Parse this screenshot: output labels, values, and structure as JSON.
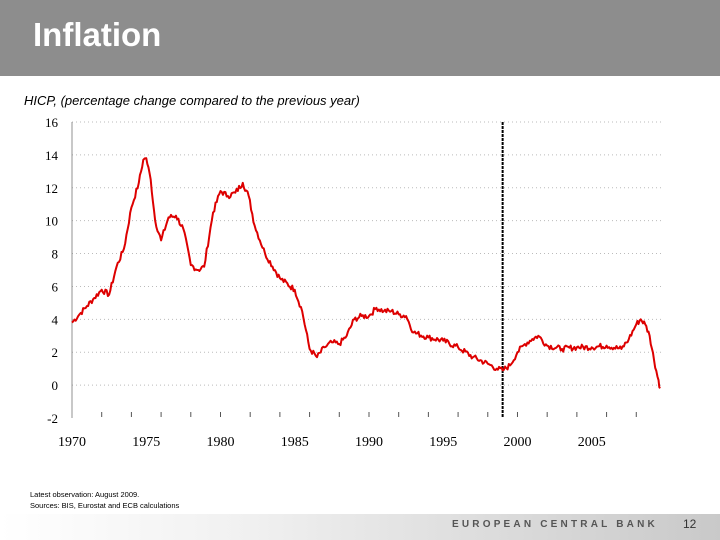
{
  "slide": {
    "title": "Inflation",
    "subtitle": "HICP, (percentage change compared to the previous year)",
    "note_latest": "Latest observation: August 2009.",
    "note_sources": "Sources: BIS, Eurostat and ECB calculations",
    "bank_name": "EUROPEAN CENTRAL BANK",
    "page_number": "12"
  },
  "colors": {
    "title_bar": "#8d8d8d",
    "series_line": "#dd0000",
    "grid": "#bbbbbb",
    "marker_line": "#000000"
  },
  "chart_data": {
    "type": "line",
    "title": "HICP, (percentage change compared to the previous year)",
    "xlabel": "",
    "ylabel": "",
    "xlim": [
      1970,
      2009.8
    ],
    "ylim": [
      -2,
      16
    ],
    "x_ticks": [
      1970,
      1975,
      1980,
      1985,
      1990,
      1995,
      2000,
      2005
    ],
    "x_tick_labels": [
      "1970",
      "1975",
      "1980",
      "1985",
      "1990",
      "1995",
      "2000",
      "2005"
    ],
    "y_ticks": [
      -2,
      0,
      2,
      4,
      6,
      8,
      10,
      12,
      14,
      16
    ],
    "y_tick_labels": [
      "-2",
      "0",
      "2",
      "4",
      "6",
      "8",
      "10",
      "12",
      "14",
      "16"
    ],
    "grid": true,
    "vertical_marker_x": 1999.0,
    "series": [
      {
        "name": "HICP",
        "x": [
          1970.0,
          1970.5,
          1971.0,
          1971.5,
          1972.0,
          1972.5,
          1973.0,
          1973.5,
          1974.0,
          1974.5,
          1974.8,
          1975.0,
          1975.3,
          1975.6,
          1976.0,
          1976.5,
          1977.0,
          1977.5,
          1978.0,
          1978.5,
          1978.9,
          1979.5,
          1980.0,
          1980.5,
          1981.0,
          1981.5,
          1981.9,
          1982.3,
          1983.0,
          1984.0,
          1985.0,
          1985.5,
          1986.0,
          1986.5,
          1987.0,
          1987.5,
          1988.0,
          1988.5,
          1989.0,
          1989.5,
          1990.0,
          1990.5,
          1991.0,
          1991.5,
          1992.0,
          1992.5,
          1993.0,
          1994.0,
          1995.0,
          1996.0,
          1997.0,
          1998.0,
          1998.6,
          1999.0,
          1999.5,
          2000.0,
          2000.5,
          2001.0,
          2001.4,
          2002.0,
          2003.0,
          2004.0,
          2005.0,
          2006.0,
          2007.0,
          2007.5,
          2008.0,
          2008.3,
          2008.6,
          2008.9,
          2009.2,
          2009.5,
          2009.6
        ],
        "values": [
          3.8,
          4.3,
          4.8,
          5.3,
          5.8,
          5.5,
          7.2,
          8.3,
          10.8,
          12.3,
          13.7,
          13.8,
          12.5,
          10.0,
          8.8,
          10.2,
          10.3,
          9.5,
          7.3,
          7.0,
          7.2,
          10.5,
          11.8,
          11.5,
          11.7,
          12.3,
          11.5,
          9.7,
          8.0,
          6.5,
          5.8,
          4.5,
          2.2,
          1.7,
          2.3,
          2.6,
          2.5,
          3.0,
          4.0,
          4.2,
          4.2,
          4.7,
          4.5,
          4.5,
          4.3,
          4.2,
          3.2,
          2.9,
          2.7,
          2.3,
          1.7,
          1.3,
          1.0,
          0.9,
          1.2,
          2.0,
          2.5,
          2.8,
          3.0,
          2.4,
          2.2,
          2.3,
          2.3,
          2.4,
          2.2,
          2.8,
          3.7,
          4.0,
          3.7,
          3.0,
          1.5,
          0.3,
          -0.2
        ]
      }
    ]
  }
}
